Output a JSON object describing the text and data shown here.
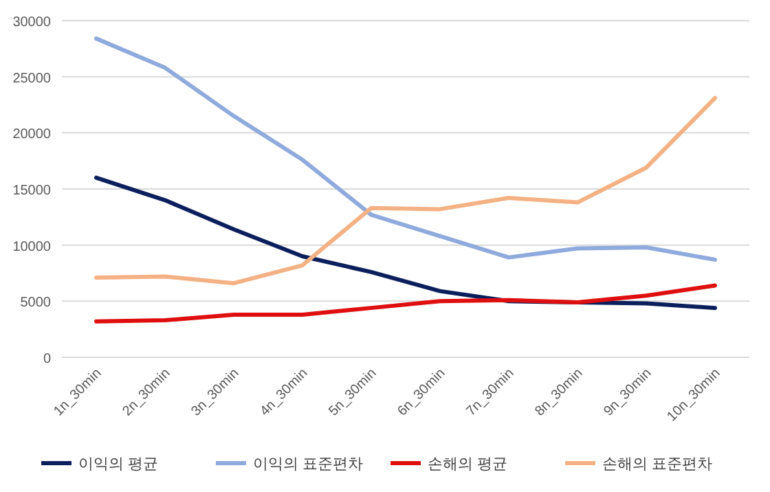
{
  "chart_data": {
    "type": "line",
    "categories": [
      "1n_30min",
      "2n_30min",
      "3n_30min",
      "4n_30min",
      "5n_30min",
      "6n_30min",
      "7n_30min",
      "8n_30min",
      "9n_30min",
      "10n_30min"
    ],
    "series": [
      {
        "name": "이익의 평균",
        "color": "#0b1f5c",
        "values": [
          16000,
          14000,
          11400,
          9000,
          7600,
          5900,
          5000,
          4900,
          4800,
          4400
        ]
      },
      {
        "name": "이익의 표준편차",
        "color": "#8faadc",
        "values": [
          28400,
          25800,
          21500,
          17600,
          12700,
          10800,
          8900,
          9700,
          9800,
          8700
        ]
      },
      {
        "name": "손해의 평균",
        "color": "#e00f0f",
        "values": [
          3200,
          3300,
          3800,
          3800,
          4400,
          5000,
          5100,
          4900,
          5500,
          6400
        ]
      },
      {
        "name": "손해의 표준편차",
        "color": "#f4b183",
        "values": [
          7100,
          7200,
          6600,
          8200,
          13300,
          13200,
          14200,
          13800,
          16900,
          23100
        ]
      }
    ],
    "ylim": [
      0,
      30000
    ],
    "yticks": [
      0,
      5000,
      10000,
      15000,
      20000,
      25000,
      30000
    ],
    "grid": "y",
    "legend": "bottom",
    "marker": "none",
    "line_style": "solid"
  }
}
